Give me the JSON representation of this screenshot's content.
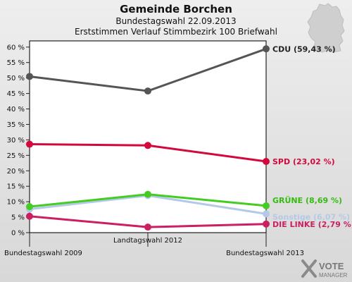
{
  "header": {
    "title": "Gemeinde Borchen",
    "subtitle1": "Bundestagswahl 22.09.2013",
    "subtitle2": "Erststimmen Verlauf Stimmbezirk 100 Briefwahl"
  },
  "logo": {
    "line1": "VOTE",
    "line2": "MANAGER"
  },
  "chart_data": {
    "type": "line",
    "title": "Gemeinde Borchen",
    "subtitle": "Bundestagswahl 22.09.2013 — Erststimmen Verlauf Stimmbezirk 100 Briefwahl",
    "categories": [
      "Bundestagswahl 2009",
      "Landtagswahl 2012",
      "Bundestagswahl 2013"
    ],
    "ylim": [
      0,
      62
    ],
    "yticks": [
      0,
      5,
      10,
      15,
      20,
      25,
      30,
      35,
      40,
      45,
      50,
      55,
      60
    ],
    "ytick_suffix": " %",
    "grid": false,
    "series": [
      {
        "name": "CDU",
        "label": "CDU (59,43 %)",
        "color": "#555555",
        "label_color": "#222222",
        "values": [
          50.5,
          45.8,
          59.43
        ]
      },
      {
        "name": "SPD",
        "label": "SPD (23,02 %)",
        "color": "#d4083c",
        "label_color": "#d4083c",
        "values": [
          28.6,
          28.2,
          23.02
        ]
      },
      {
        "name": "Sonstige",
        "label": "Sonstige (6,07 %)",
        "color": "#b4c8e8",
        "label_color": "#b4c8e8",
        "values": [
          7.6,
          12.0,
          6.07
        ]
      },
      {
        "name": "GRÜNE",
        "label": "GRÜNE (8,69 %)",
        "color": "#44cc22",
        "label_color": "#33bb11",
        "values": [
          8.4,
          12.4,
          8.69
        ]
      },
      {
        "name": "DIE LINKE",
        "label": "DIE LINKE (2,79 %)",
        "color": "#cc1f62",
        "label_color": "#cc1f62",
        "values": [
          5.3,
          1.8,
          2.79
        ]
      }
    ]
  }
}
